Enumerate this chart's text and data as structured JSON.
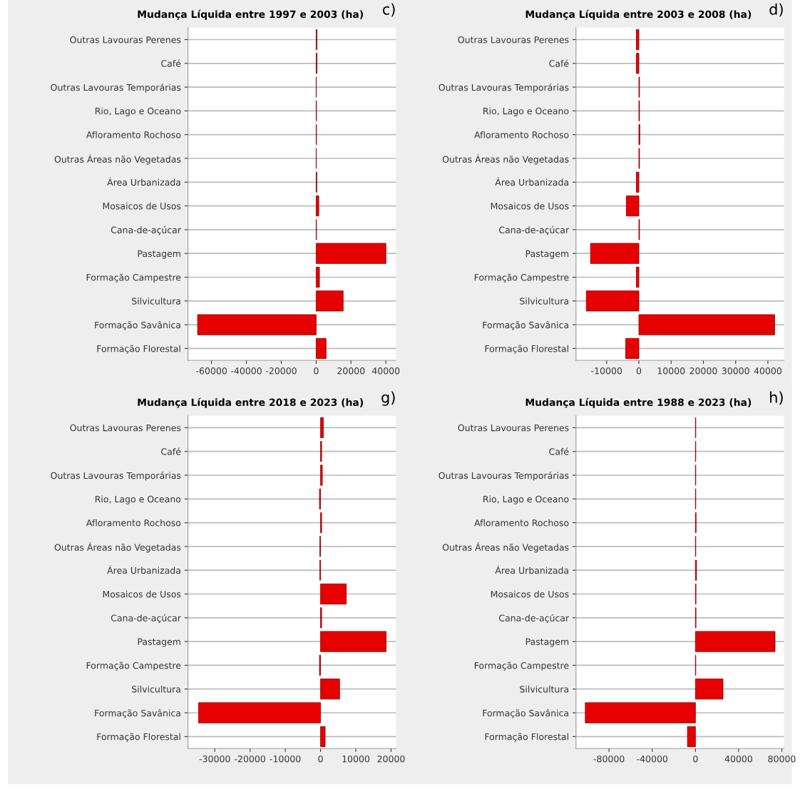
{
  "chart_data": [
    {
      "type": "bar",
      "orientation": "horizontal",
      "title": "Mudança Líquida entre 1997 e 2003 (ha)",
      "annotations": [
        "c)"
      ],
      "grid": "y",
      "legend": false,
      "categories": [
        "Outras Lavouras Perenes",
        "Café",
        "Outras Lavouras Temporárias",
        "Rio, Lago e Oceano",
        "Afloramento Rochoso",
        "Outras Áreas não Vegetadas",
        "Área Urbanizada",
        "Mosaicos de Usos",
        "Cana-de-açúcar",
        "Pastagem",
        "Formação Campestre",
        "Silvicultura",
        "Formação Savânica",
        "Formação Florestal"
      ],
      "series": [
        {
          "color": "#e60000",
          "values": [
            500,
            500,
            100,
            200,
            200,
            100,
            400,
            1500,
            200,
            40000,
            1900,
            15500,
            -68000,
            5700
          ]
        }
      ],
      "xlim": [
        -73500,
        45800
      ],
      "xticks": [
        -60000,
        -40000,
        -20000,
        0,
        20000,
        40000
      ]
    },
    {
      "type": "bar",
      "orientation": "horizontal",
      "title": "Mudança Líquida entre 2003 e 2008 (ha)",
      "annotations": [
        "d)"
      ],
      "grid": "y",
      "legend": false,
      "categories": [
        "Outras Lavouras Perenes",
        "Café",
        "Outras Lavouras Temporárias",
        "Rio, Lago e Oceano",
        "Afloramento Rochoso",
        "Outras Áreas não Vegetadas",
        "Área Urbanizada",
        "Mosaicos de Usos",
        "Cana-de-açúcar",
        "Pastagem",
        "Formação Campestre",
        "Silvicultura",
        "Formação Savânica",
        "Formação Florestal"
      ],
      "series": [
        {
          "color": "#e60000",
          "values": [
            -800,
            -800,
            200,
            200,
            300,
            200,
            -800,
            -3900,
            200,
            -15000,
            -800,
            -16300,
            42100,
            -4100
          ]
        }
      ],
      "xlim": [
        -19500,
        45000
      ],
      "xticks": [
        -10000,
        0,
        10000,
        20000,
        30000,
        40000
      ]
    },
    {
      "type": "bar",
      "orientation": "horizontal",
      "title": "Mudança Líquida entre 2018 e 2023 (ha)",
      "annotations": [
        "g)"
      ],
      "grid": "y",
      "legend": false,
      "categories": [
        "Outras Lavouras Perenes",
        "Café",
        "Outras Lavouras Temporárias",
        "Rio, Lago e Oceano",
        "Afloramento Rochoso",
        "Outras Áreas não Vegetadas",
        "Área Urbanizada",
        "Mosaicos de Usos",
        "Cana-de-açúcar",
        "Pastagem",
        "Formação Campestre",
        "Silvicultura",
        "Formação Savânica",
        "Formação Florestal"
      ],
      "series": [
        {
          "color": "#e60000",
          "values": [
            800,
            300,
            500,
            -300,
            300,
            -200,
            -200,
            7300,
            300,
            18600,
            -300,
            5400,
            -34600,
            1300
          ]
        }
      ],
      "xlim": [
        -37600,
        21400
      ],
      "xticks": [
        -30000,
        -20000,
        -10000,
        0,
        10000,
        20000
      ]
    },
    {
      "type": "bar",
      "orientation": "horizontal",
      "title": "Mudança Líquida entre 1988 e 2023 (ha)",
      "annotations": [
        "h)"
      ],
      "grid": "y",
      "legend": false,
      "categories": [
        "Outras Lavouras Perenes",
        "Café",
        "Outras Lavouras Temporárias",
        "Rio, Lago e Oceano",
        "Afloramento Rochoso",
        "Outras Áreas não Vegetadas",
        "Área Urbanizada",
        "Mosaicos de Usos",
        "Cana-de-açúcar",
        "Pastagem",
        "Formação Campestre",
        "Silvicultura",
        "Formação Savânica",
        "Formação Florestal"
      ],
      "series": [
        {
          "color": "#e60000",
          "values": [
            300,
            300,
            300,
            300,
            600,
            300,
            1000,
            500,
            500,
            73700,
            300,
            25500,
            -102000,
            -7400
          ]
        }
      ],
      "xlim": [
        -110600,
        82000
      ],
      "xticks": [
        -80000,
        -40000,
        0,
        40000,
        80000
      ]
    }
  ]
}
